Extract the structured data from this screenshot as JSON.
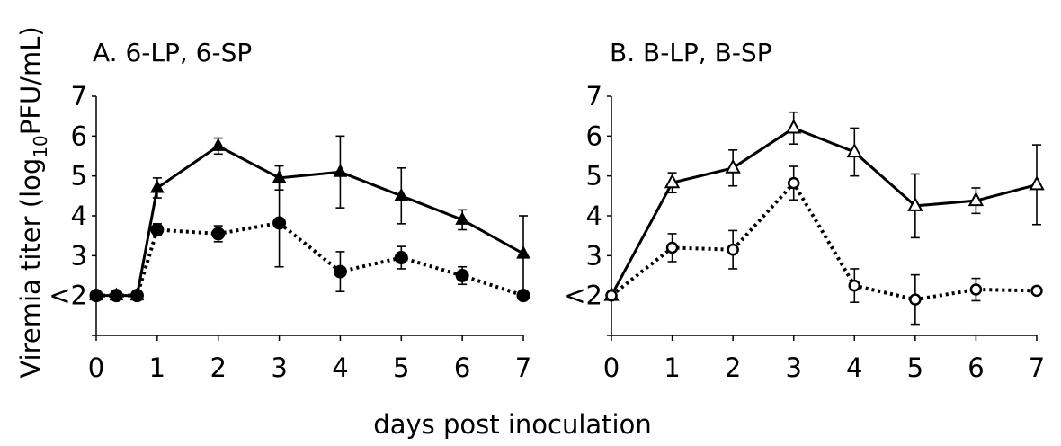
{
  "figure": {
    "ylabel_main": "Viremia titer (log",
    "ylabel_sub": "10",
    "ylabel_tail": "PFU/mL)",
    "xlabel": "days post inoculation"
  },
  "chart_data": [
    {
      "type": "line",
      "title": "A.  6-LP, 6-SP",
      "xlabel": "days post inoculation",
      "ylabel": "Viremia titer (log10PFU/mL)",
      "xlim": [
        0,
        7
      ],
      "ylim": [
        1,
        7
      ],
      "x_ticks": [
        "0",
        "1",
        "2",
        "3",
        "4",
        "5",
        "6",
        "7"
      ],
      "y_ticks": [
        {
          "value": 2,
          "label": "<2"
        },
        {
          "value": 3,
          "label": "3"
        },
        {
          "value": 4,
          "label": "4"
        },
        {
          "value": 5,
          "label": "5"
        },
        {
          "value": 6,
          "label": "6"
        },
        {
          "value": 7,
          "label": "7"
        }
      ],
      "series": [
        {
          "marker": "filled-triangle",
          "line_style": "solid",
          "color": "#000000",
          "x": [
            0,
            0.33,
            0.67,
            1,
            2,
            3,
            4,
            5,
            6,
            7
          ],
          "y": [
            2.0,
            2.0,
            2.0,
            4.7,
            5.75,
            4.95,
            5.1,
            4.5,
            3.9,
            3.05
          ],
          "error": [
            0,
            0,
            0,
            0.25,
            0.2,
            0.3,
            0.9,
            0.7,
            0.25,
            0.95
          ]
        },
        {
          "marker": "filled-circle",
          "line_style": "dotted",
          "color": "#000000",
          "x": [
            0,
            0.33,
            0.67,
            1,
            2,
            3,
            4,
            5,
            6,
            7
          ],
          "y": [
            2.0,
            2.0,
            2.0,
            3.65,
            3.55,
            3.82,
            2.6,
            2.95,
            2.5,
            2.0
          ],
          "error": [
            0,
            0,
            0,
            0.15,
            0.2,
            1.1,
            0.5,
            0.28,
            0.22,
            0
          ]
        }
      ]
    },
    {
      "type": "line",
      "title": "B.  B-LP, B-SP",
      "xlabel": "days post inoculation",
      "ylabel": "Viremia titer (log10PFU/mL)",
      "xlim": [
        0,
        7
      ],
      "ylim": [
        1,
        7
      ],
      "x_ticks": [
        "0",
        "1",
        "2",
        "3",
        "4",
        "5",
        "6",
        "7"
      ],
      "y_ticks": [
        {
          "value": 2,
          "label": "<2"
        },
        {
          "value": 3,
          "label": "3"
        },
        {
          "value": 4,
          "label": "4"
        },
        {
          "value": 5,
          "label": "5"
        },
        {
          "value": 6,
          "label": "6"
        },
        {
          "value": 7,
          "label": "7"
        }
      ],
      "series": [
        {
          "marker": "open-triangle",
          "line_style": "solid",
          "color": "#000000",
          "x": [
            0,
            1,
            2,
            3,
            4,
            5,
            6,
            7
          ],
          "y": [
            2.0,
            4.83,
            5.2,
            6.2,
            5.6,
            4.25,
            4.38,
            4.78
          ],
          "error": [
            0,
            0.25,
            0.45,
            0.4,
            0.6,
            0.8,
            0.32,
            1.0
          ]
        },
        {
          "marker": "open-circle",
          "line_style": "dotted",
          "color": "#000000",
          "x": [
            0,
            1,
            2,
            3,
            4,
            5,
            6,
            7
          ],
          "y": [
            2.0,
            3.2,
            3.15,
            4.82,
            2.25,
            1.9,
            2.15,
            2.12
          ],
          "error": [
            0,
            0.35,
            0.48,
            0.42,
            0.42,
            0.62,
            0.28,
            0
          ]
        }
      ]
    }
  ]
}
